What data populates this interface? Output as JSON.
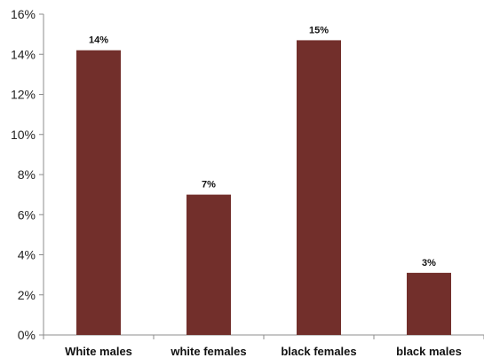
{
  "chart_data": {
    "type": "bar",
    "title": "",
    "xlabel": "",
    "ylabel": "",
    "categories": [
      "White males",
      "white females",
      "black females",
      "black males"
    ],
    "values": [
      14.2,
      7.0,
      14.7,
      3.1
    ],
    "data_labels": [
      "14%",
      "7%",
      "15%",
      "3%"
    ],
    "ylim": [
      0,
      16
    ],
    "y_ticks": [
      0,
      2,
      4,
      6,
      8,
      10,
      12,
      14,
      16
    ],
    "y_tick_labels": [
      "0%",
      "2%",
      "4%",
      "6%",
      "8%",
      "10%",
      "12%",
      "14%",
      "16%"
    ],
    "grid": false,
    "legend": "none",
    "bar_color": "#722F2B",
    "axis_color": "#8c8c8c"
  }
}
